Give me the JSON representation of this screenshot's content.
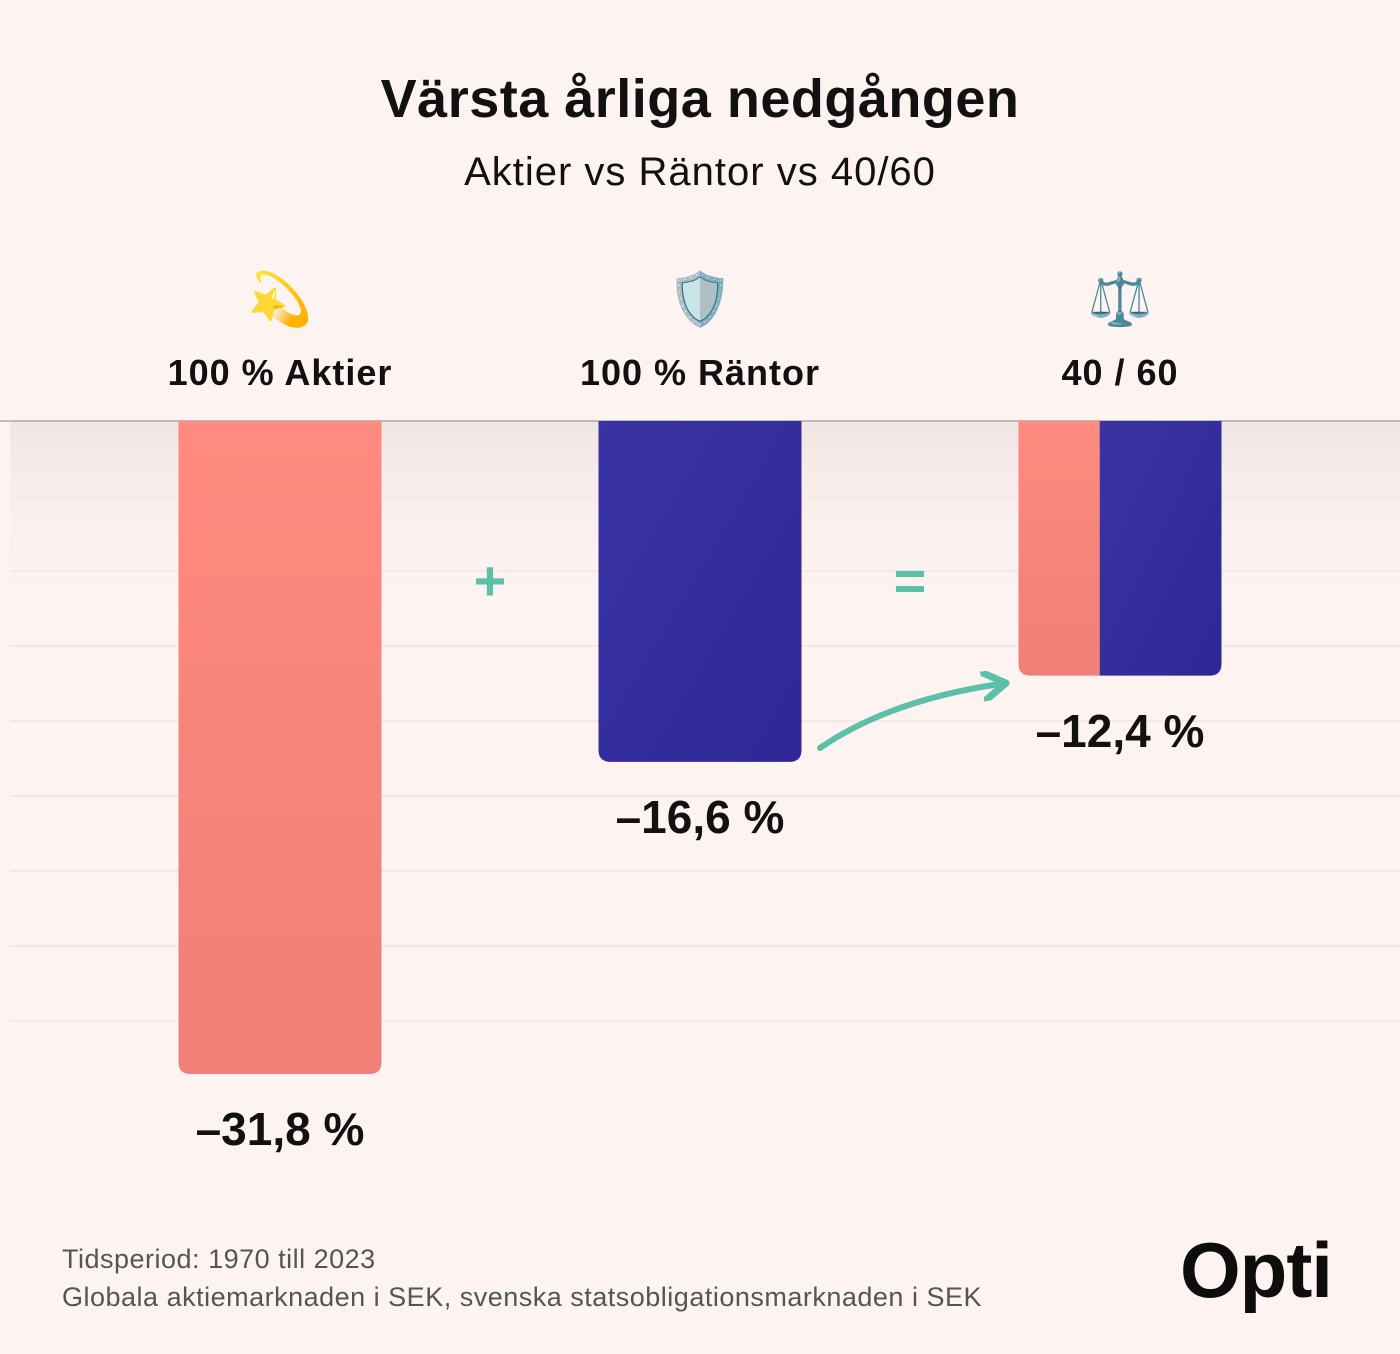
{
  "title": "Värsta årliga nedgången",
  "subtitle": "Aktier vs Räntor vs 40/60",
  "icons": {
    "aktier": "💫",
    "rantor": "🛡️",
    "mix": "⚖️"
  },
  "operators": {
    "plus": "+",
    "equals": "="
  },
  "chart_data": {
    "type": "bar",
    "categories": [
      "100 % Aktier",
      "100 % Räntor",
      "40 / 60"
    ],
    "values": [
      -31.8,
      -16.6,
      -12.4
    ],
    "value_labels": [
      "–31,8 %",
      "–16,6 %",
      "–12,4 %"
    ],
    "mix_split": {
      "stocks_share": 0.4,
      "bonds_share": 0.6
    },
    "title": "Värsta årliga nedgången",
    "subtitle": "Aktier vs Räntor vs 40/60",
    "ylim": [
      -32,
      0
    ],
    "grid": true,
    "colors": {
      "stocks": "#ff8a80",
      "bonds": "#312a9a",
      "accent": "#5cc0a8"
    }
  },
  "footer": {
    "line1": "Tidsperiod: 1970 till 2023",
    "line2": "Globala aktiemarknaden i SEK, svenska statsobligationsmarknaden i SEK"
  },
  "logo": "Opti"
}
